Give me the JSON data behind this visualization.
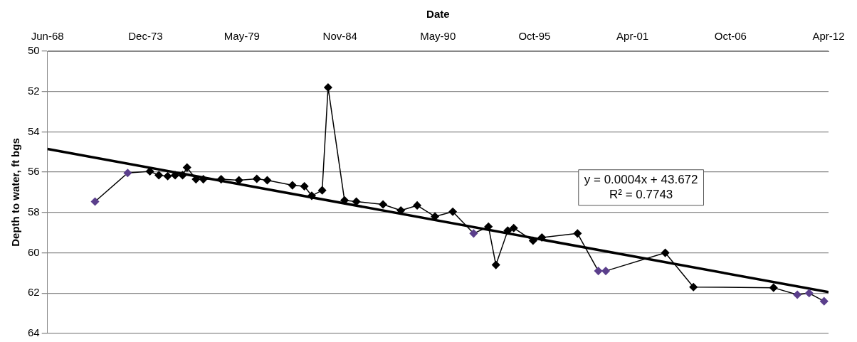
{
  "chart_data": {
    "type": "line",
    "xlabel": "Date",
    "ylabel": "Depth to water, ft bgs",
    "xlim": [
      "1968-06",
      "2012-04"
    ],
    "xticks": [
      {
        "value": "1968-06",
        "label": "Jun-68"
      },
      {
        "value": "1973-12",
        "label": "Dec-73"
      },
      {
        "value": "1979-05",
        "label": "May-79"
      },
      {
        "value": "1984-11",
        "label": "Nov-84"
      },
      {
        "value": "1990-05",
        "label": "May-90"
      },
      {
        "value": "1995-10",
        "label": "Oct-95"
      },
      {
        "value": "2001-04",
        "label": "Apr-01"
      },
      {
        "value": "2006-10",
        "label": "Oct-06"
      },
      {
        "value": "2012-04",
        "label": "Apr-12"
      }
    ],
    "ylim": [
      64,
      50
    ],
    "yticks": [
      50,
      52,
      54,
      56,
      58,
      60,
      62,
      64
    ],
    "grid": "y",
    "legend": false,
    "line_style": "solid",
    "annotations": [
      "y = 0.0004x + 43.672",
      "R² = 0.7743"
    ],
    "series": [
      {
        "type": "line",
        "marker": "diamond",
        "color": "#000000",
        "x": [
          "1971-02",
          "1972-12",
          "1974-03",
          "1974-09",
          "1975-03",
          "1975-08",
          "1976-01",
          "1976-04",
          "1976-10",
          "1977-03",
          "1978-03",
          "1979-03",
          "1980-03",
          "1980-10",
          "1982-03",
          "1982-11",
          "1983-04",
          "1983-11",
          "1984-03",
          "1985-02",
          "1985-10",
          "1987-04",
          "1988-04",
          "1989-03",
          "1990-03",
          "1991-03",
          "1992-05",
          "1993-03",
          "1993-08",
          "1994-04",
          "1994-08",
          "1995-09",
          "1996-03",
          "1998-03",
          "1999-05",
          "1999-10",
          "2003-02",
          "2004-09",
          "2009-03",
          "2010-07",
          "2011-03",
          "2012-01"
        ],
        "values": [
          57.46,
          56.04,
          55.96,
          56.15,
          56.2,
          56.15,
          56.15,
          55.77,
          56.35,
          56.35,
          56.35,
          56.4,
          56.33,
          56.4,
          56.65,
          56.7,
          57.17,
          56.9,
          51.8,
          57.4,
          57.46,
          57.6,
          57.9,
          57.65,
          58.2,
          57.96,
          59.04,
          58.7,
          60.6,
          58.9,
          58.77,
          59.4,
          59.24,
          59.04,
          60.9,
          60.9,
          60.0,
          61.7,
          61.73,
          62.08,
          62.0,
          62.4
        ],
        "colors": [
          "#5b3f8c",
          "#5b3f8c",
          "#000000",
          "#000000",
          "#000000",
          "#000000",
          "#000000",
          "#000000",
          "#000000",
          "#000000",
          "#000000",
          "#000000",
          "#000000",
          "#000000",
          "#000000",
          "#000000",
          "#000000",
          "#000000",
          "#000000",
          "#000000",
          "#000000",
          "#000000",
          "#000000",
          "#000000",
          "#000000",
          "#000000",
          "#5b3f8c",
          "#000000",
          "#000000",
          "#000000",
          "#000000",
          "#000000",
          "#000000",
          "#000000",
          "#5b3f8c",
          "#5b3f8c",
          "#000000",
          "#000000",
          "#000000",
          "#5b3f8c",
          "#5b3f8c",
          "#5b3f8c"
        ]
      },
      {
        "type": "line",
        "marker": "none",
        "color": "#000000",
        "x": [
          "1968-06",
          "2012-04"
        ],
        "values": [
          54.85,
          61.95
        ]
      }
    ]
  }
}
